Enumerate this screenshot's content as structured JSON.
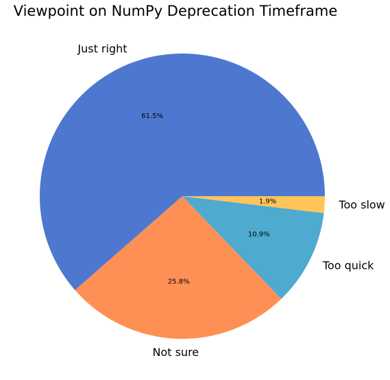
{
  "chart_data": {
    "type": "pie",
    "title": "Viewpoint on NumPy Deprecation Timeframe",
    "categories": [
      "Just right",
      "Not sure",
      "Too quick",
      "Too slow"
    ],
    "values": [
      61.5,
      25.8,
      10.9,
      1.9
    ],
    "percent_labels": [
      "61.5%",
      "25.8%",
      "10.9%",
      "1.9%"
    ],
    "colors": [
      "#4e78cf",
      "#ff9055",
      "#4eaacf",
      "#ffc45a"
    ],
    "start_angle_deg": 0,
    "direction": "counterclockwise"
  }
}
